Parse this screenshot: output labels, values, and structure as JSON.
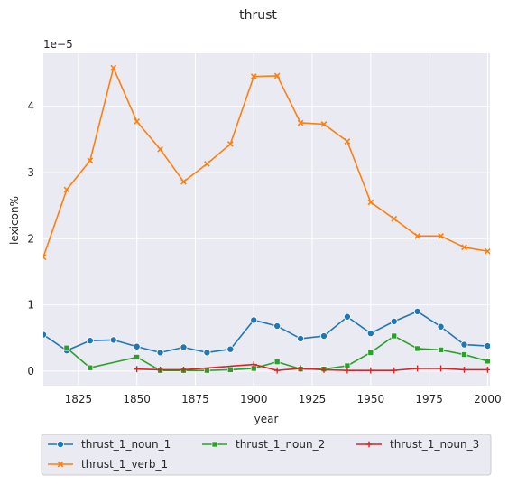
{
  "chart_data": {
    "type": "line",
    "title": "thrust",
    "xlabel": "year",
    "ylabel": "lexicon%",
    "y_scale_label": "1e−5",
    "xlim": [
      1810,
      2001
    ],
    "ylim": [
      -0.22,
      4.8
    ],
    "x_ticks": [
      1825,
      1850,
      1875,
      1900,
      1925,
      1950,
      1975,
      2000
    ],
    "y_ticks": [
      0,
      1,
      2,
      3,
      4
    ],
    "grid": true,
    "legend_placement": "bottom-below",
    "series": [
      {
        "name": "thrust_1_noun_1",
        "color": "#1f77b4",
        "marker": "circle",
        "x": [
          1810,
          1820,
          1830,
          1840,
          1850,
          1860,
          1870,
          1880,
          1890,
          1900,
          1910,
          1920,
          1930,
          1940,
          1950,
          1960,
          1970,
          1980,
          1990,
          2000
        ],
        "y": [
          0.55,
          0.31,
          0.46,
          0.47,
          0.37,
          0.28,
          0.36,
          0.28,
          0.33,
          0.77,
          0.68,
          0.49,
          0.53,
          0.82,
          0.57,
          0.75,
          0.9,
          0.67,
          0.4,
          0.38
        ]
      },
      {
        "name": "thrust_1_verb_1",
        "color": "#ff7f0e",
        "marker": "x",
        "x": [
          1810,
          1820,
          1830,
          1840,
          1850,
          1860,
          1870,
          1880,
          1890,
          1900,
          1910,
          1920,
          1930,
          1940,
          1950,
          1960,
          1970,
          1980,
          1990,
          2000
        ],
        "y": [
          1.72,
          2.74,
          3.18,
          4.58,
          3.77,
          3.35,
          2.86,
          3.13,
          3.43,
          4.45,
          4.46,
          3.75,
          3.73,
          3.47,
          2.55,
          2.3,
          2.04,
          2.04,
          1.87,
          1.81
        ]
      },
      {
        "name": "thrust_1_noun_2",
        "color": "#2ca02c",
        "marker": "square",
        "x": [
          1820,
          1830,
          1850,
          1860,
          1870,
          1880,
          1890,
          1900,
          1910,
          1920,
          1930,
          1940,
          1950,
          1960,
          1970,
          1980,
          1990,
          2000
        ],
        "y": [
          0.35,
          0.05,
          0.21,
          0.01,
          0.01,
          0.01,
          0.02,
          0.04,
          0.14,
          0.03,
          0.03,
          0.08,
          0.28,
          0.53,
          0.34,
          0.32,
          0.25,
          0.15
        ]
      },
      {
        "name": "thrust_1_noun_3",
        "color": "#d62728",
        "marker": "plus",
        "x": [
          1850,
          1860,
          1870,
          1900,
          1910,
          1920,
          1930,
          1940,
          1950,
          1960,
          1970,
          1980,
          1990,
          2000
        ],
        "y": [
          0.03,
          0.02,
          0.02,
          0.1,
          0.01,
          0.04,
          0.02,
          0.01,
          0.01,
          0.01,
          0.04,
          0.04,
          0.02,
          0.02
        ]
      }
    ]
  }
}
